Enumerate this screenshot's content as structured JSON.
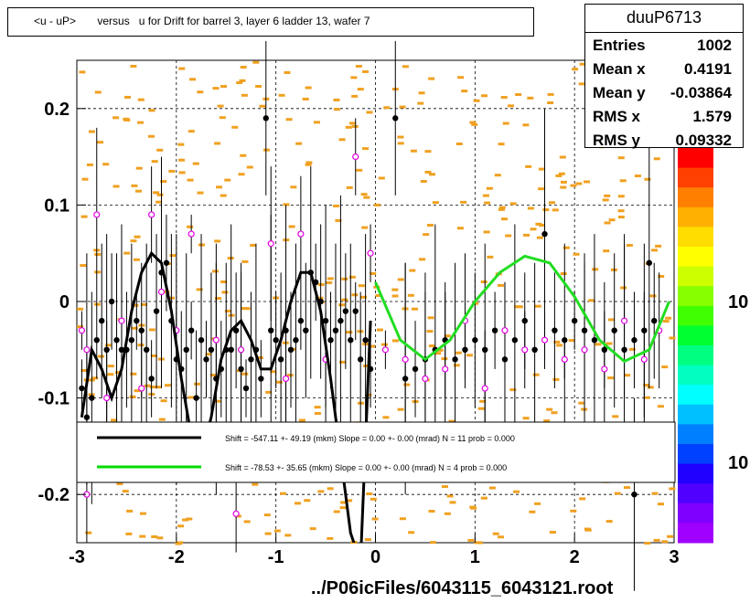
{
  "title": "<u - uP>       versus   u for Drift for barrel 3, layer 6 ladder 13, wafer 7",
  "stats": {
    "name": "duuP6713",
    "rows": [
      {
        "key": "Entries",
        "value": "1002"
      },
      {
        "key": "Mean x",
        "value": "0.4191"
      },
      {
        "key": "Mean y",
        "value": "-0.03864"
      },
      {
        "key": "RMS x",
        "value": "1.579"
      },
      {
        "key": "RMS y",
        "value": "0.09332"
      }
    ]
  },
  "footer": "../P06icFiles/6043115_6043121.root",
  "palette_labels": [
    "10",
    "10"
  ],
  "legend": {
    "entries": [
      {
        "text": "Shift =  -547.11 +- 49.19 (mkm) Slope =     0.00 +- 0.00 (mrad)  N = 11 prob = 0.000",
        "color": "#000000"
      },
      {
        "text": "Shift =   -78.53 +- 35.65 (mkm) Slope =     0.00 +- 0.00 (mrad)  N = 4 prob = 0.000",
        "color": "#00dd00"
      }
    ]
  },
  "chart_data": {
    "type": "scatter",
    "xlim": [
      -3,
      3
    ],
    "ylim": [
      -0.25,
      0.25
    ],
    "x_ticks": [
      -3,
      -2,
      -1,
      0,
      1,
      2,
      3
    ],
    "y_ticks": [
      -0.2,
      -0.1,
      0,
      0.1,
      0.2
    ],
    "y_tick_labels": [
      "-0.2",
      "-0.1",
      "0",
      "0.1",
      "0.2"
    ],
    "grid": true,
    "colors": {
      "bins": "#f0a020",
      "black_points": "#000000",
      "magenta_points": "#e000e0",
      "fit1": "#000000",
      "fit2": "#22dd22"
    },
    "fit_black": {
      "x": [
        -2.95,
        -2.85,
        -2.75,
        -2.65,
        -2.55,
        -2.45,
        -2.35,
        -2.25,
        -2.15,
        -2.05,
        -1.95,
        -1.85,
        -1.75,
        -1.65,
        -1.55,
        -1.45,
        -1.35,
        -1.25,
        -1.15,
        -1.05,
        -0.95,
        -0.85,
        -0.75,
        -0.65,
        -0.55,
        -0.45,
        -0.35,
        -0.25,
        -0.15,
        -0.05
      ],
      "y": [
        -0.12,
        -0.05,
        -0.07,
        -0.1,
        -0.07,
        -0.01,
        0.03,
        0.05,
        0.04,
        -0.01,
        -0.08,
        -0.14,
        -0.16,
        -0.12,
        -0.06,
        -0.03,
        -0.02,
        -0.04,
        -0.07,
        -0.07,
        -0.04,
        0.0,
        0.03,
        0.03,
        -0.01,
        -0.08,
        -0.16,
        -0.24,
        -0.27,
        -0.02
      ]
    },
    "fit_green": {
      "x": [
        0.0,
        0.25,
        0.5,
        0.75,
        1.0,
        1.25,
        1.5,
        1.75,
        2.0,
        2.25,
        2.5,
        2.75,
        2.95
      ],
      "y": [
        0.02,
        -0.04,
        -0.06,
        -0.04,
        0.0,
        0.03,
        0.047,
        0.04,
        0.005,
        -0.04,
        -0.062,
        -0.05,
        0.0
      ]
    },
    "black_points": [
      [
        -2.95,
        -0.09
      ],
      [
        -2.9,
        -0.12
      ],
      [
        -2.85,
        -0.1
      ],
      [
        -2.8,
        -0.04
      ],
      [
        -2.75,
        -0.02
      ],
      [
        -2.7,
        -0.05
      ],
      [
        -2.65,
        0.0
      ],
      [
        -2.6,
        -0.04
      ],
      [
        -2.55,
        -0.05
      ],
      [
        -2.5,
        -0.05
      ],
      [
        -2.45,
        -0.04
      ],
      [
        -2.4,
        -0.02
      ],
      [
        -2.35,
        -0.03
      ],
      [
        -2.3,
        -0.05
      ],
      [
        -2.25,
        -0.08
      ],
      [
        -2.2,
        -0.01
      ],
      [
        -2.15,
        0.03
      ],
      [
        -2.1,
        0.04
      ],
      [
        -2.05,
        -0.02
      ],
      [
        -2.0,
        -0.06
      ],
      [
        -1.95,
        -0.07
      ],
      [
        -1.9,
        -0.05
      ],
      [
        -1.85,
        -0.03
      ],
      [
        -1.8,
        -0.1
      ],
      [
        -1.75,
        -0.04
      ],
      [
        -1.7,
        -0.06
      ],
      [
        -1.65,
        -0.05
      ],
      [
        -1.6,
        -0.08
      ],
      [
        -1.55,
        -0.07
      ],
      [
        -1.5,
        -0.05
      ],
      [
        -1.45,
        -0.05
      ],
      [
        -1.4,
        -0.03
      ],
      [
        -1.35,
        -0.07
      ],
      [
        -1.3,
        -0.09
      ],
      [
        -1.25,
        -0.06
      ],
      [
        -1.2,
        -0.05
      ],
      [
        -1.15,
        -0.08
      ],
      [
        -1.1,
        0.19
      ],
      [
        -1.05,
        -0.03
      ],
      [
        -1.0,
        -0.04
      ],
      [
        -0.95,
        -0.06
      ],
      [
        -0.9,
        -0.03
      ],
      [
        -0.85,
        -0.05
      ],
      [
        -0.8,
        -0.04
      ],
      [
        -0.75,
        -0.02
      ],
      [
        -0.7,
        -0.03
      ],
      [
        -0.65,
        0.03
      ],
      [
        -0.6,
        0.02
      ],
      [
        -0.55,
        0.0
      ],
      [
        -0.5,
        -0.02
      ],
      [
        -0.45,
        -0.04
      ],
      [
        -0.4,
        -0.03
      ],
      [
        -0.35,
        -0.02
      ],
      [
        -0.3,
        -0.01
      ],
      [
        -0.25,
        -0.04
      ],
      [
        -0.2,
        -0.01
      ],
      [
        -0.15,
        -0.06
      ],
      [
        -0.1,
        -0.04
      ],
      [
        -0.05,
        -0.07
      ],
      [
        0.2,
        0.19
      ],
      [
        0.3,
        -0.08
      ],
      [
        0.4,
        -0.07
      ],
      [
        0.5,
        -0.06
      ],
      [
        0.6,
        -0.05
      ],
      [
        0.7,
        -0.04
      ],
      [
        0.8,
        -0.06
      ],
      [
        0.9,
        -0.05
      ],
      [
        1.0,
        -0.04
      ],
      [
        1.1,
        -0.05
      ],
      [
        1.2,
        -0.03
      ],
      [
        1.3,
        -0.06
      ],
      [
        1.4,
        -0.04
      ],
      [
        1.5,
        -0.02
      ],
      [
        1.6,
        -0.05
      ],
      [
        1.7,
        0.07
      ],
      [
        1.8,
        -0.03
      ],
      [
        1.9,
        -0.04
      ],
      [
        2.0,
        -0.02
      ],
      [
        2.1,
        -0.03
      ],
      [
        2.2,
        -0.04
      ],
      [
        2.3,
        -0.05
      ],
      [
        2.4,
        -0.03
      ],
      [
        2.5,
        -0.05
      ],
      [
        2.6,
        -0.04
      ],
      [
        2.7,
        -0.03
      ],
      [
        2.75,
        0.04
      ],
      [
        2.8,
        -0.02
      ],
      [
        2.6,
        -0.2
      ]
    ],
    "magenta_points": [
      [
        -2.95,
        -0.03
      ],
      [
        -2.9,
        -0.05
      ],
      [
        -2.8,
        0.09
      ],
      [
        -2.7,
        -0.1
      ],
      [
        -2.55,
        -0.02
      ],
      [
        -2.35,
        -0.09
      ],
      [
        -2.25,
        0.09
      ],
      [
        -2.15,
        0.01
      ],
      [
        -2.0,
        -0.03
      ],
      [
        -1.85,
        0.07
      ],
      [
        -1.6,
        -0.04
      ],
      [
        -1.35,
        -0.05
      ],
      [
        -1.05,
        0.06
      ],
      [
        -0.9,
        -0.08
      ],
      [
        -0.75,
        0.07
      ],
      [
        -0.5,
        -0.06
      ],
      [
        -0.2,
        0.15
      ],
      [
        -0.05,
        0.05
      ],
      [
        0.1,
        -0.05
      ],
      [
        0.3,
        -0.06
      ],
      [
        0.5,
        -0.08
      ],
      [
        0.7,
        -0.07
      ],
      [
        0.9,
        -0.02
      ],
      [
        1.1,
        -0.09
      ],
      [
        1.3,
        -0.03
      ],
      [
        1.5,
        -0.05
      ],
      [
        1.7,
        -0.04
      ],
      [
        1.9,
        -0.06
      ],
      [
        2.1,
        -0.05
      ],
      [
        2.3,
        -0.07
      ],
      [
        2.5,
        -0.02
      ],
      [
        2.7,
        -0.06
      ],
      [
        2.85,
        -0.03
      ],
      [
        -2.9,
        -0.2
      ],
      [
        -1.4,
        -0.22
      ]
    ]
  }
}
